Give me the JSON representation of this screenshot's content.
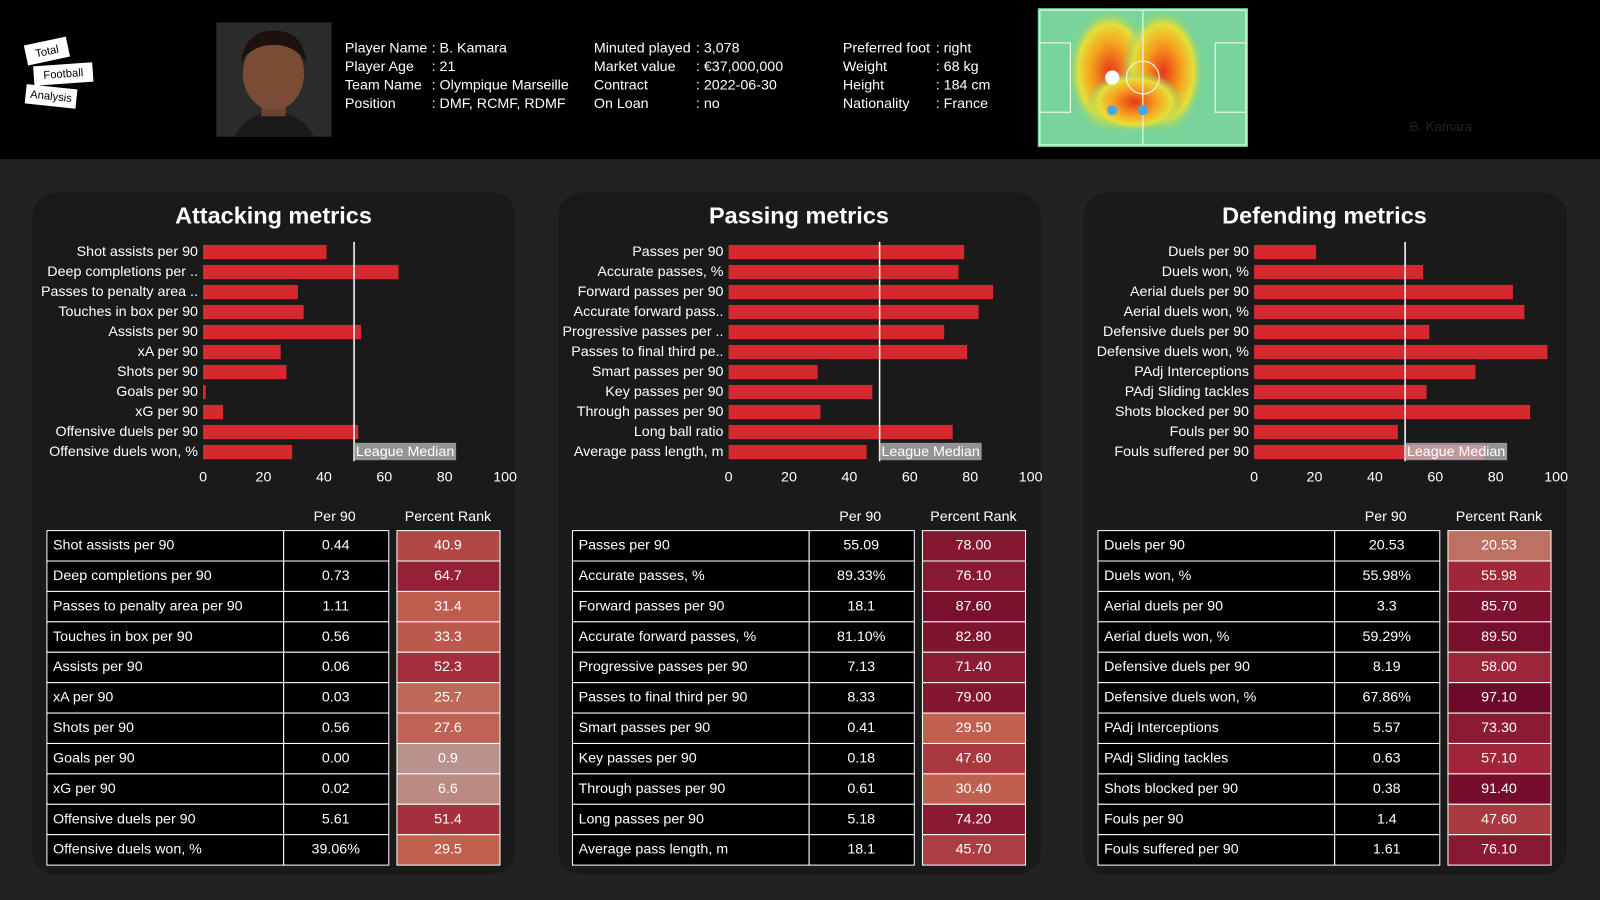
{
  "header": {
    "logo": [
      "Total",
      "Football",
      "Analysis"
    ],
    "info": [
      [
        [
          "Player Name",
          ": B. Kamara"
        ],
        [
          "Player Age",
          ": 21"
        ],
        [
          "Team Name",
          ": Olympique Marseille"
        ],
        [
          "Position",
          ": DMF, RCMF, RDMF"
        ]
      ],
      [
        [
          "Minuted played",
          ": 3,078"
        ],
        [
          "Market value",
          ": €37,000,000"
        ],
        [
          "Contract",
          ": 2022-06-30"
        ],
        [
          "On Loan",
          ": no"
        ]
      ],
      [
        [
          "Preferred foot",
          ": right"
        ],
        [
          "Weight",
          ": 68 kg"
        ],
        [
          "Height",
          ": 184 cm"
        ],
        [
          "Nationality",
          ": France"
        ]
      ]
    ],
    "heatmap_label": "B. Kamara"
  },
  "chart_data": [
    {
      "type": "bar",
      "title": "Attacking metrics",
      "color": "#d42a2f",
      "categories": [
        "Shot assists per 90",
        "Deep completions per ..",
        "Passes to penalty area ..",
        "Touches in box per 90",
        "Assists per 90",
        "xA per 90",
        "Shots per 90",
        "Goals per 90",
        "xG per 90",
        "Offensive duels per 90",
        "Offensive duels won, %"
      ],
      "values": [
        40.9,
        64.7,
        31.4,
        33.3,
        52.3,
        25.7,
        27.6,
        0.9,
        6.6,
        51.4,
        29.5
      ],
      "value_labels": [
        "40.9",
        "64.7",
        "31.4",
        "33.3",
        "52.3",
        "25.7",
        "27.6",
        "0.9",
        "6.6",
        "51.4",
        "29.5"
      ],
      "xlim": [
        0,
        100
      ],
      "xticks": [
        0,
        20,
        40,
        60,
        80,
        100
      ],
      "median": 50,
      "median_label": "League Median",
      "table": {
        "columns": [
          "Per 90",
          "Percent Rank"
        ],
        "rows": [
          "Shot assists per 90",
          "Deep completions per 90",
          "Passes to penalty area per 90",
          "Touches in box per 90",
          "Assists per 90",
          "xA per 90",
          "Shots per 90",
          "Goals per 90",
          "xG per 90",
          "Offensive duels per 90",
          "Offensive duels won, %"
        ],
        "per90": [
          "0.44",
          "0.73",
          "1.11",
          "0.56",
          "0.06",
          "0.03",
          "0.56",
          "0.00",
          "0.02",
          "5.61",
          "39.06%"
        ]
      }
    },
    {
      "type": "bar",
      "title": "Passing metrics",
      "color": "#d42a2f",
      "categories": [
        "Passes per 90",
        "Accurate passes, %",
        "Forward passes per 90",
        "Accurate forward pass..",
        "Progressive passes per ..",
        "Passes to final third pe..",
        "Smart passes per 90",
        "Key passes per 90",
        "Through passes per 90",
        "Long ball ratio",
        "Average pass length, m"
      ],
      "values": [
        78,
        76.1,
        87.6,
        82.8,
        71.4,
        79,
        29.5,
        47.6,
        30.4,
        74.2,
        45.7
      ],
      "value_labels": [
        "78.00",
        "76.10",
        "87.60",
        "82.80",
        "71.40",
        "79.00",
        "29.50",
        "47.60",
        "30.40",
        "74.20",
        "45.70"
      ],
      "xlim": [
        0,
        100
      ],
      "xticks": [
        0,
        20,
        40,
        60,
        80,
        100
      ],
      "median": 50,
      "median_label": "League Median",
      "table": {
        "columns": [
          "Per 90",
          "Percent Rank"
        ],
        "rows": [
          "Passes per 90",
          "Accurate passes, %",
          "Forward passes per 90",
          "Accurate forward passes, %",
          "Progressive passes per 90",
          "Passes to final third per 90",
          "Smart passes per 90",
          "Key passes per 90",
          "Through passes per 90",
          "Long passes per 90",
          "Average pass length, m"
        ],
        "per90": [
          "55.09",
          "89.33%",
          "18.1",
          "81.10%",
          "7.13",
          "8.33",
          "0.41",
          "0.18",
          "0.61",
          "5.18",
          "18.1"
        ]
      }
    },
    {
      "type": "bar",
      "title": "Defending metrics",
      "color": "#d42a2f",
      "categories": [
        "Duels per 90",
        "Duels won, %",
        "Aerial duels per 90",
        "Aerial duels won, %",
        "Defensive duels per 90",
        "Defensive duels won, %",
        "PAdj Interceptions",
        "PAdj Sliding tackles",
        "Shots blocked per 90",
        "Fouls per 90",
        "Fouls suffered per 90"
      ],
      "values": [
        20.53,
        55.98,
        85.7,
        89.5,
        58,
        97.1,
        73.3,
        57.1,
        91.4,
        47.6,
        76.1
      ],
      "value_labels": [
        "20.53",
        "55.98",
        "85.70",
        "89.50",
        "58.00",
        "97.10",
        "73.30",
        "57.10",
        "91.40",
        "47.60",
        "76.10"
      ],
      "xlim": [
        0,
        100
      ],
      "xticks": [
        0,
        20,
        40,
        60,
        80,
        100
      ],
      "median": 50,
      "median_label": "League Median",
      "table": {
        "columns": [
          "Per 90",
          "Percent Rank"
        ],
        "rows": [
          "Duels per 90",
          "Duels won, %",
          "Aerial duels per 90",
          "Aerial duels won, %",
          "Defensive duels per 90",
          "Defensive duels won, %",
          "PAdj Interceptions",
          "PAdj Sliding tackles",
          "Shots blocked per 90",
          "Fouls per 90",
          "Fouls suffered per 90"
        ],
        "per90": [
          "20.53",
          "55.98%",
          "3.3",
          "59.29%",
          "8.19",
          "67.86%",
          "5.57",
          "0.63",
          "0.38",
          "1.4",
          "1.61"
        ]
      }
    }
  ]
}
